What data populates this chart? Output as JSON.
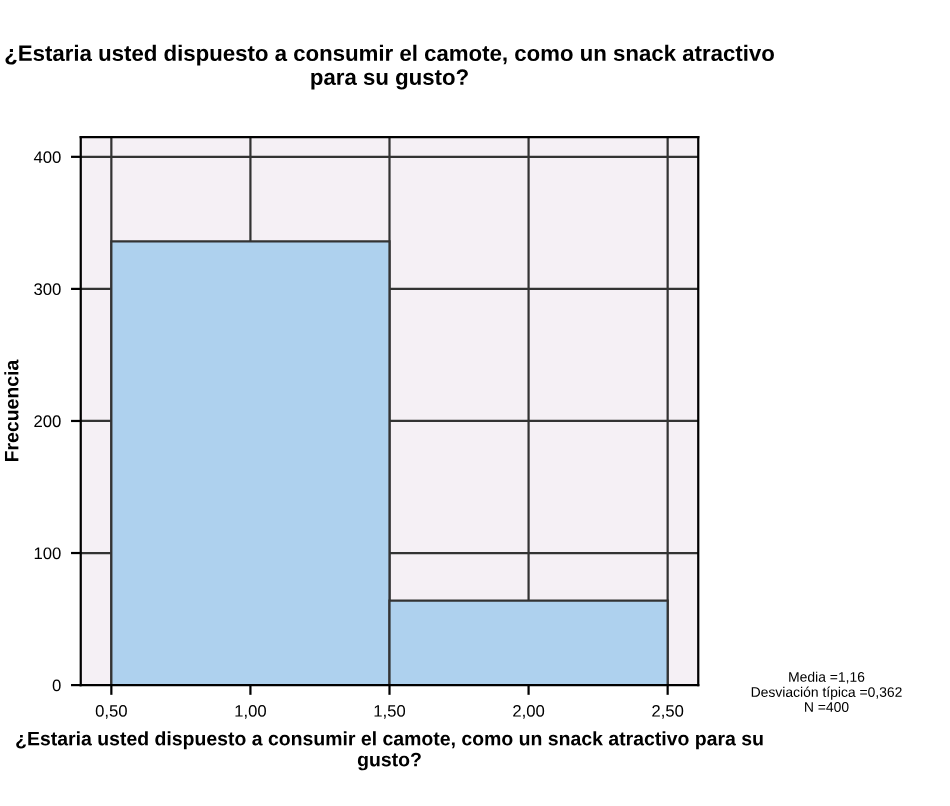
{
  "chart_data": {
    "type": "histogram",
    "title": "¿Estaria usted dispuesto a consumir el camote, como un snack atractivo para su gusto?",
    "xlabel": "¿Estaria usted dispuesto a consumir el camote, como un snack atractivo para su gusto?",
    "ylabel": "Frecuencia",
    "bins": [
      0.5,
      1.5,
      2.5
    ],
    "values": [
      336,
      64
    ],
    "color": "#aed1ee",
    "xlim": [
      0.39,
      2.61
    ],
    "xticks": [
      {
        "value": 0.5,
        "label": "0,50"
      },
      {
        "value": 1.0,
        "label": "1,00"
      },
      {
        "value": 1.5,
        "label": "1,50"
      },
      {
        "value": 2.0,
        "label": "2,00"
      },
      {
        "value": 2.5,
        "label": "2,50"
      }
    ],
    "ylim": [
      0,
      415
    ],
    "yticks": [
      0,
      100,
      200,
      300,
      400
    ],
    "grid": true,
    "annotations": [
      "Media =1,16\nDesviación típica =0,362\nN =400"
    ]
  }
}
